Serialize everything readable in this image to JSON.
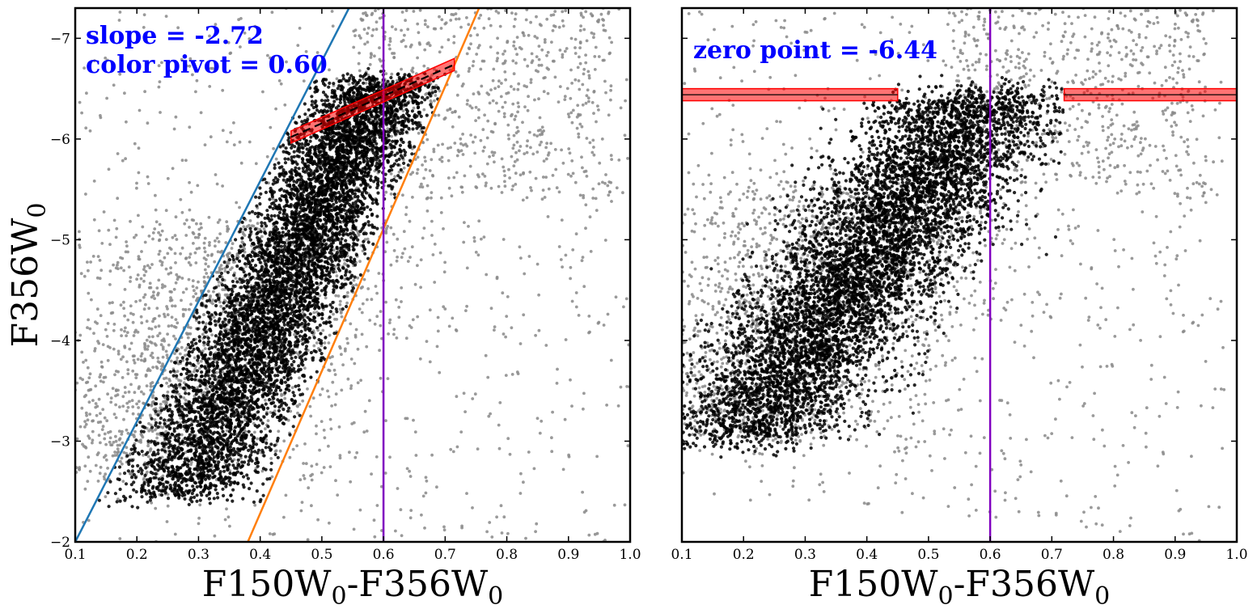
{
  "chart_data": [
    {
      "type": "scatter",
      "panel": "left",
      "xlabel": {
        "main": "F150W",
        "sub1": "0",
        "mid": "-F356W",
        "sub2": "0"
      },
      "ylabel": {
        "main": "F356W",
        "sub": "0"
      },
      "xlim": [
        0.1,
        1.0
      ],
      "ylim": [
        -2.0,
        -7.3
      ],
      "y_inverted": true,
      "x_ticks": [
        0.1,
        0.2,
        0.3,
        0.4,
        0.5,
        0.6,
        0.7,
        0.8,
        0.9,
        1.0
      ],
      "x_tick_labels": [
        "0.1",
        "0.2",
        "0.3",
        "0.4",
        "0.5",
        "0.6",
        "0.7",
        "0.8",
        "0.9",
        "1.0"
      ],
      "y_ticks": [
        -2,
        -3,
        -4,
        -5,
        -6,
        -7
      ],
      "y_tick_labels": [
        "−2",
        "−3",
        "−4",
        "−5",
        "−6",
        "−7"
      ],
      "annotations": [
        "slope = -2.72",
        "color pivot = 0.60"
      ],
      "series": [
        {
          "name": "all stars",
          "color": "#888888",
          "kind": "points",
          "description_distribution": "diffuse cloud centred near color 0.5, mag -4.5"
        },
        {
          "name": "selected RGB stars",
          "color": "#000000",
          "kind": "points",
          "description_distribution": "dense band between blue and orange lines"
        },
        {
          "name": "blue selection edge",
          "color": "#1f77b4",
          "kind": "line",
          "x": [
            0.1,
            0.544
          ],
          "y": [
            -2.0,
            -7.3
          ]
        },
        {
          "name": "orange selection edge",
          "color": "#ff7f0e",
          "kind": "line",
          "x": [
            0.38,
            0.755
          ],
          "y": [
            -2.0,
            -7.3
          ]
        },
        {
          "name": "color pivot",
          "color": "#8000c0",
          "kind": "vline",
          "x": 0.6
        },
        {
          "name": "TRGB fit",
          "color": "#000000",
          "kind": "dashed-line",
          "x": [
            0.45,
            0.715
          ],
          "y": [
            -6.02,
            -6.74
          ]
        },
        {
          "name": "TRGB uncertainty band",
          "color": "#ff0000",
          "kind": "band",
          "x": [
            0.45,
            0.715
          ],
          "y": [
            -6.02,
            -6.74
          ],
          "half_width_mag": 0.06
        }
      ]
    },
    {
      "type": "scatter",
      "panel": "right",
      "xlabel": {
        "main": "F150W",
        "sub1": "0",
        "mid": "-F356W",
        "sub2": "0"
      },
      "xlim": [
        0.1,
        1.0
      ],
      "ylim": [
        -2.0,
        -7.3
      ],
      "y_inverted": true,
      "x_ticks": [
        0.1,
        0.2,
        0.3,
        0.4,
        0.5,
        0.6,
        0.7,
        0.8,
        0.9,
        1.0
      ],
      "x_tick_labels": [
        "0.1",
        "0.2",
        "0.3",
        "0.4",
        "0.5",
        "0.6",
        "0.7",
        "0.8",
        "0.9",
        "1.0"
      ],
      "y_ticks": [
        -2,
        -3,
        -4,
        -5,
        -6,
        -7
      ],
      "annotations": [
        "zero point = -6.44"
      ],
      "series": [
        {
          "name": "all stars (rectified)",
          "color": "#888888",
          "kind": "points"
        },
        {
          "name": "selected RGB stars (rectified)",
          "color": "#000000",
          "kind": "points"
        },
        {
          "name": "color pivot",
          "color": "#8000c0",
          "kind": "vline",
          "x": 0.6
        },
        {
          "name": "zero point left",
          "color": "#ff0000",
          "kind": "band-hline",
          "x": [
            0.1,
            0.45
          ],
          "y": -6.44,
          "half_width_mag": 0.06
        },
        {
          "name": "zero point right",
          "color": "#ff0000",
          "kind": "band-hline",
          "x": [
            0.72,
            1.0
          ],
          "y": -6.44,
          "half_width_mag": 0.06
        }
      ]
    }
  ]
}
